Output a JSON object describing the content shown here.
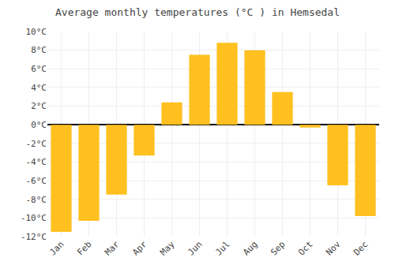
{
  "chart_data": {
    "type": "bar",
    "title": "Average monthly temperatures (°C ) in Hemsedal",
    "categories": [
      "Jan",
      "Feb",
      "Mar",
      "Apr",
      "May",
      "Jun",
      "Jul",
      "Aug",
      "Sep",
      "Oct",
      "Nov",
      "Dec"
    ],
    "values": [
      -11.5,
      -10.3,
      -7.5,
      -3.3,
      2.4,
      7.5,
      8.8,
      8.0,
      3.5,
      -0.3,
      -6.5,
      -9.8
    ],
    "color": "#FFC020",
    "ylim": [
      -12,
      10
    ],
    "yticks": [
      {
        "value": -12,
        "label": "-12°C"
      },
      {
        "value": -10,
        "label": "-10°C"
      },
      {
        "value": -8,
        "label": "-8°C"
      },
      {
        "value": -6,
        "label": "-6°C"
      },
      {
        "value": -4,
        "label": "-4°C"
      },
      {
        "value": -2,
        "label": "-2°C"
      },
      {
        "value": 0,
        "label": "0°C"
      },
      {
        "value": 2,
        "label": "2°C"
      },
      {
        "value": 4,
        "label": "4°C"
      },
      {
        "value": 6,
        "label": "6°C"
      },
      {
        "value": 8,
        "label": "8°C"
      },
      {
        "value": 10,
        "label": "10°C"
      }
    ],
    "grid": true
  }
}
